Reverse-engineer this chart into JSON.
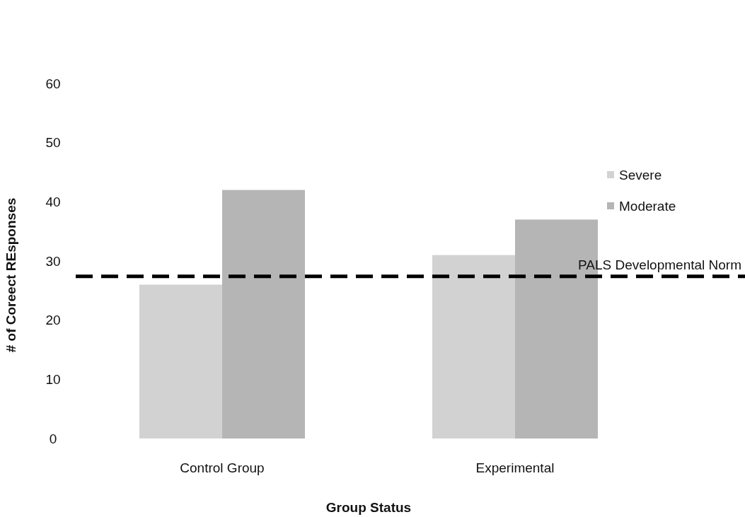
{
  "chart_data": {
    "type": "bar",
    "xlabel": "Group Status",
    "ylabel": "# of Coreect REsponses",
    "categories": [
      "Control Group",
      "Experimental"
    ],
    "series": [
      {
        "name": "Severe",
        "color": "#d2d2d2",
        "values": [
          26,
          31
        ]
      },
      {
        "name": "Moderate",
        "color": "#b5b5b5",
        "values": [
          42,
          37
        ]
      }
    ],
    "ylim": [
      0,
      60
    ],
    "yticks": [
      0,
      10,
      20,
      30,
      40,
      50,
      60
    ],
    "grid": false,
    "legend": "right",
    "ref_lines": [
      {
        "axis": "y",
        "value": 27.4,
        "label": "PALS Developmental Norm",
        "color": "#000000",
        "line_style": "dashed"
      }
    ]
  }
}
